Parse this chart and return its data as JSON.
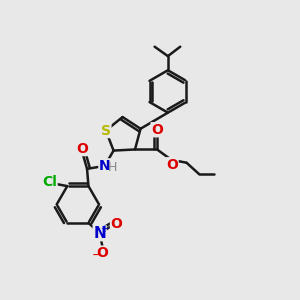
{
  "bg_color": "#e8e8e8",
  "bond_color": "#1a1a1a",
  "bond_width": 1.8,
  "atom_labels": {
    "S": {
      "color": "#b8b800",
      "fontsize": 10,
      "fontweight": "bold"
    },
    "O": {
      "color": "#dd0000",
      "fontsize": 10,
      "fontweight": "bold"
    },
    "N": {
      "color": "#0000cc",
      "fontsize": 10,
      "fontweight": "bold"
    },
    "Cl": {
      "color": "#00aa00",
      "fontsize": 10,
      "fontweight": "bold"
    },
    "H": {
      "color": "#888888",
      "fontsize": 9,
      "fontweight": "normal"
    }
  },
  "figsize": [
    3.0,
    3.0
  ],
  "dpi": 100
}
